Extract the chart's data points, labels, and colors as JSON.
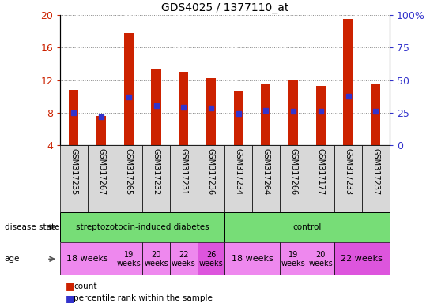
{
  "title": "GDS4025 / 1377110_at",
  "samples": [
    "GSM317235",
    "GSM317267",
    "GSM317265",
    "GSM317232",
    "GSM317231",
    "GSM317236",
    "GSM317234",
    "GSM317264",
    "GSM317266",
    "GSM317177",
    "GSM317233",
    "GSM317237"
  ],
  "count_values": [
    10.8,
    7.6,
    17.8,
    13.3,
    13.0,
    12.3,
    10.7,
    11.5,
    12.0,
    11.3,
    19.5,
    11.5
  ],
  "percentile_values": [
    8.0,
    7.5,
    9.9,
    8.9,
    8.7,
    8.6,
    7.9,
    8.3,
    8.2,
    8.2,
    10.0,
    8.2
  ],
  "ylim": [
    4,
    20
  ],
  "yticks": [
    4,
    8,
    12,
    16,
    20
  ],
  "right_yticks": [
    0,
    25,
    50,
    75,
    100
  ],
  "right_ylim": [
    0,
    100
  ],
  "bar_color": "#cc2200",
  "percentile_color": "#3333cc",
  "disease_color": "#77dd77",
  "age_color_light": "#ee88ee",
  "age_color_dark": "#dd55dd",
  "background_color": "#ffffff",
  "grid_color": "#888888",
  "tick_label_color_left": "#cc2200",
  "tick_label_color_right": "#3333cc",
  "age_groups": [
    {
      "label": "18 weeks",
      "start": 0,
      "end": 2,
      "dark": false,
      "fontsize": 8
    },
    {
      "label": "19\nweeks",
      "start": 2,
      "end": 3,
      "dark": false,
      "fontsize": 7
    },
    {
      "label": "20\nweeks",
      "start": 3,
      "end": 4,
      "dark": false,
      "fontsize": 7
    },
    {
      "label": "22\nweeks",
      "start": 4,
      "end": 5,
      "dark": false,
      "fontsize": 7
    },
    {
      "label": "26\nweeks",
      "start": 5,
      "end": 6,
      "dark": true,
      "fontsize": 7
    },
    {
      "label": "18 weeks",
      "start": 6,
      "end": 8,
      "dark": false,
      "fontsize": 8
    },
    {
      "label": "19\nweeks",
      "start": 8,
      "end": 9,
      "dark": false,
      "fontsize": 7
    },
    {
      "label": "20\nweeks",
      "start": 9,
      "end": 10,
      "dark": false,
      "fontsize": 7
    },
    {
      "label": "22 weeks",
      "start": 10,
      "end": 12,
      "dark": true,
      "fontsize": 8
    }
  ]
}
